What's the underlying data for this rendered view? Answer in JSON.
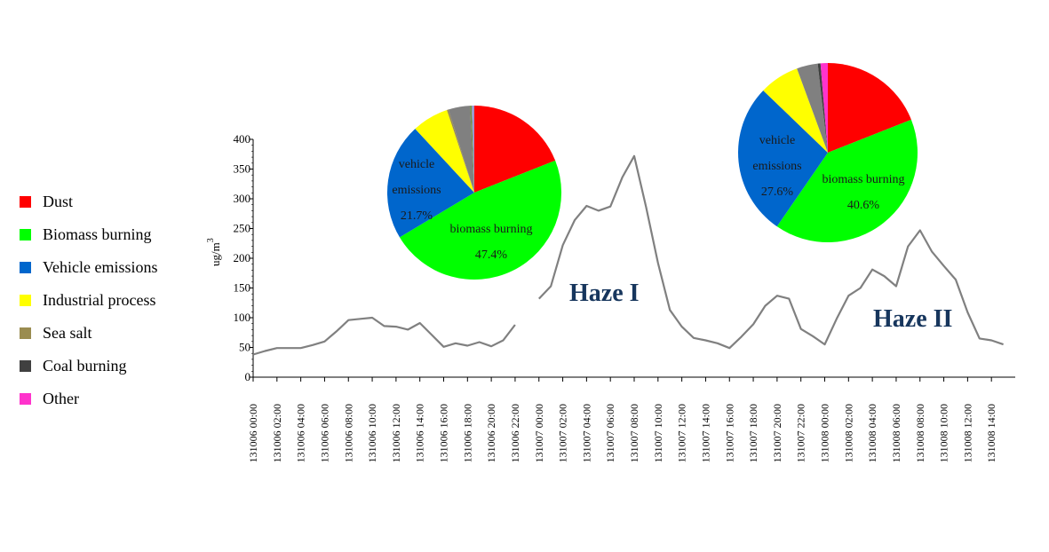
{
  "legend": [
    {
      "label": "Dust",
      "color": "#FF0000"
    },
    {
      "label": "Biomass burning",
      "color": "#00FF00"
    },
    {
      "label": "Vehicle emissions",
      "color": "#0066CC"
    },
    {
      "label": "Industrial process",
      "color": "#FFFF00"
    },
    {
      "label": "Sea salt",
      "color": "#9A8C50"
    },
    {
      "label": "Coal burning",
      "color": "#404040"
    },
    {
      "label": "Other",
      "color": "#FF33CC"
    }
  ],
  "annotations": {
    "haze1": "Haze I",
    "haze2": "Haze II"
  },
  "chart_data": [
    {
      "type": "line",
      "ylabel": "ug/m",
      "ylabel_sup": "3",
      "ylim": [
        0,
        400
      ],
      "yticks": [
        0,
        50,
        100,
        150,
        200,
        250,
        300,
        350,
        400
      ],
      "grid": false,
      "line_color": "#808080",
      "xtick_labels": [
        "131006 00:00",
        "131006 02:00",
        "131006 04:00",
        "131006 06:00",
        "131006 08:00",
        "131006 10:00",
        "131006 12:00",
        "131006 14:00",
        "131006 16:00",
        "131006 18:00",
        "131006 20:00",
        "131006 22:00",
        "131007 00:00",
        "131007 02:00",
        "131007 04:00",
        "131007 06:00",
        "131007 08:00",
        "131007 10:00",
        "131007 12:00",
        "131007 14:00",
        "131007 16:00",
        "131007 18:00",
        "131007 20:00",
        "131007 22:00",
        "131008 00:00",
        "131008 02:00",
        "131008 04:00",
        "131008 06:00",
        "131008 08:00",
        "131008 10:00",
        "131008 12:00",
        "131008 14:00"
      ],
      "series": [
        {
          "values": [
            38,
            44,
            49,
            49,
            49,
            54,
            60,
            77,
            96,
            98,
            100,
            86,
            85,
            80,
            91,
            71,
            51,
            57,
            53,
            59,
            52,
            62,
            88,
            null,
            132,
            153,
            222,
            264,
            288,
            280,
            287,
            336,
            372,
            286,
            192,
            113,
            85,
            66,
            62,
            57,
            49,
            68,
            89,
            120,
            137,
            132,
            81,
            69,
            55,
            98,
            137,
            150,
            181,
            170,
            153,
            220,
            247,
            211,
            187,
            164,
            109,
            65,
            62,
            55
          ]
        }
      ]
    },
    {
      "type": "pie",
      "start": "12 o'clock, clockwise",
      "slices": [
        {
          "name": "Dust",
          "value": 19.0,
          "color": "#FF0000"
        },
        {
          "name": "biomass burning",
          "value": 47.4,
          "color": "#00FF00",
          "label": "biomass burning",
          "pct": "47.4%"
        },
        {
          "name": "vehicle emissions",
          "value": 21.7,
          "color": "#0066CC",
          "label": "vehicle\nemissions",
          "pct": "21.7%"
        },
        {
          "name": "Industrial process",
          "value": 6.8,
          "color": "#FFFF00"
        },
        {
          "name": "Sea salt",
          "value": 0.3,
          "color": "#9A8C50"
        },
        {
          "name": "Coal burning",
          "value": 4.0,
          "color": "#808080"
        },
        {
          "name": "Sea salt 2",
          "value": 0.3,
          "color": "#6E8C3C"
        },
        {
          "name": "Other",
          "value": 0.5,
          "color": "#9999CC"
        }
      ]
    },
    {
      "type": "pie",
      "start": "12 o'clock, clockwise",
      "slices": [
        {
          "name": "Dust",
          "value": 19.0,
          "color": "#FF0000"
        },
        {
          "name": "biomass burning",
          "value": 40.6,
          "color": "#00FF00",
          "label": "biomass burning",
          "pct": "40.6%"
        },
        {
          "name": "vehicle emissions",
          "value": 27.6,
          "color": "#0066CC",
          "label": "vehicle\nemissions",
          "pct": "27.6%"
        },
        {
          "name": "Industrial process",
          "value": 7.2,
          "color": "#FFFF00"
        },
        {
          "name": "Coal burning",
          "value": 3.8,
          "color": "#808080"
        },
        {
          "name": "Sea salt",
          "value": 0.5,
          "color": "#404040"
        },
        {
          "name": "Other",
          "value": 1.3,
          "color": "#FF33CC"
        }
      ]
    }
  ]
}
